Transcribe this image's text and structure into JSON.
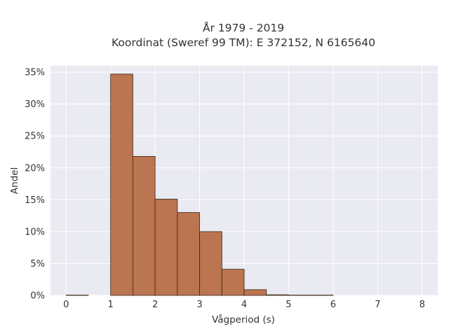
{
  "chart_data": {
    "type": "bar",
    "title_line1": "År 1979 - 2019",
    "title_line2": "Koordinat (Sweref 99 TM): E 372152, N 6165640",
    "xlabel": "Vågperiod (s)",
    "ylabel": "Andel",
    "xlim": [
      -0.35,
      8.35
    ],
    "ylim": [
      0,
      36
    ],
    "x_ticks": [
      {
        "value": 0,
        "label": "0"
      },
      {
        "value": 1,
        "label": "1"
      },
      {
        "value": 2,
        "label": "2"
      },
      {
        "value": 3,
        "label": "3"
      },
      {
        "value": 4,
        "label": "4"
      },
      {
        "value": 5,
        "label": "5"
      },
      {
        "value": 6,
        "label": "6"
      },
      {
        "value": 7,
        "label": "7"
      },
      {
        "value": 8,
        "label": "8"
      }
    ],
    "y_ticks": [
      {
        "value": 0,
        "label": "0%"
      },
      {
        "value": 5,
        "label": "5%"
      },
      {
        "value": 10,
        "label": "10%"
      },
      {
        "value": 15,
        "label": "15%"
      },
      {
        "value": 20,
        "label": "20%"
      },
      {
        "value": 25,
        "label": "25%"
      },
      {
        "value": 30,
        "label": "30%"
      },
      {
        "value": 35,
        "label": "35%"
      }
    ],
    "bins": [
      {
        "x0": 0.0,
        "x1": 0.5,
        "value": 0.05
      },
      {
        "x0": 0.5,
        "x1": 1.0,
        "value": 0.0
      },
      {
        "x0": 1.0,
        "x1": 1.5,
        "value": 34.7
      },
      {
        "x0": 1.5,
        "x1": 2.0,
        "value": 21.8
      },
      {
        "x0": 2.0,
        "x1": 2.5,
        "value": 15.1
      },
      {
        "x0": 2.5,
        "x1": 3.0,
        "value": 13.0
      },
      {
        "x0": 3.0,
        "x1": 3.5,
        "value": 10.0
      },
      {
        "x0": 3.5,
        "x1": 4.0,
        "value": 4.1
      },
      {
        "x0": 4.0,
        "x1": 4.5,
        "value": 0.9
      },
      {
        "x0": 4.5,
        "x1": 5.0,
        "value": 0.1
      },
      {
        "x0": 5.0,
        "x1": 5.5,
        "value": 0.05
      },
      {
        "x0": 5.5,
        "x1": 6.0,
        "value": 0.05
      }
    ],
    "grid": true,
    "colors": {
      "bar_fill": "#bb7550",
      "bar_edge": "#3a2618",
      "plot_background": "#eaeaf2",
      "grid": "#ffffff"
    }
  }
}
